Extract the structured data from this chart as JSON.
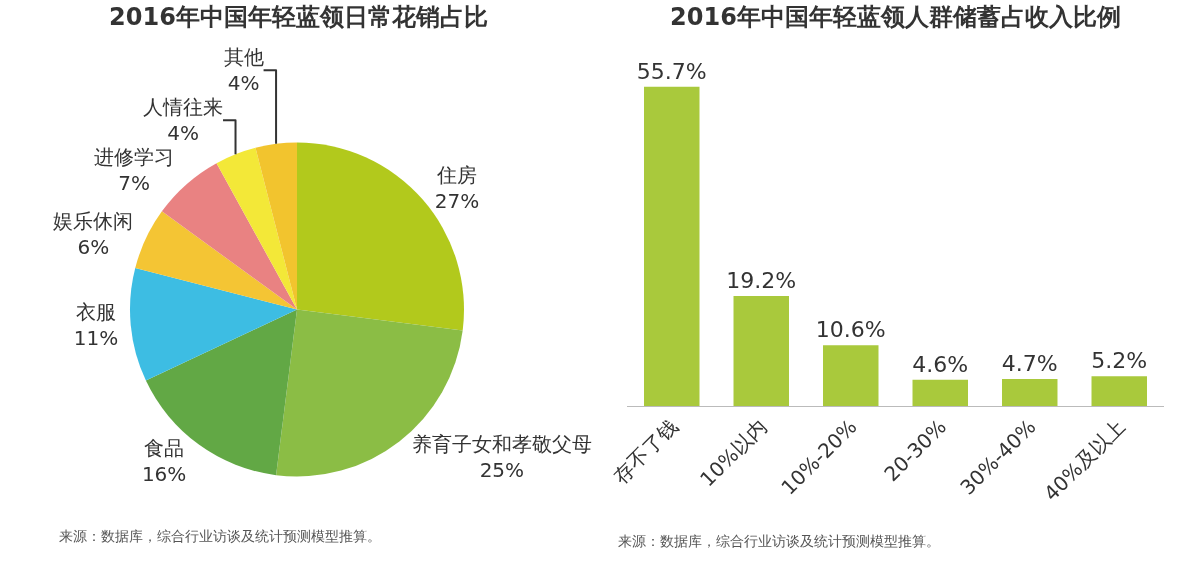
{
  "chart_data": [
    {
      "type": "pie",
      "title": "2016年中国年轻蓝领日常花销占比",
      "categories": [
        "住房",
        "养育子女和孝敬父母",
        "食品",
        "衣服",
        "娱乐休闲",
        "进修学习",
        "人情往来",
        "其他"
      ],
      "values": [
        27,
        25,
        16,
        11,
        6,
        7,
        4,
        4
      ],
      "value_labels": [
        "27%",
        "25%",
        "16%",
        "11%",
        "6%",
        "7%",
        "4%",
        "4%"
      ],
      "colors": [
        "#b2c91c",
        "#8bbd45",
        "#62a845",
        "#3dbde3",
        "#f4c534",
        "#e98282",
        "#f3e838",
        "#f2c42e"
      ],
      "legend": false,
      "annotations": [
        "来源：数据库，综合行业访谈及统计预测模型推算。"
      ]
    },
    {
      "type": "bar",
      "title": "2016年中国年轻蓝领人群储蓄占收入比例",
      "categories": [
        "存不了钱",
        "10%以内",
        "10%-20%",
        "20-30%",
        "30%-40%",
        "40%及以上"
      ],
      "values": [
        55.7,
        19.2,
        10.6,
        4.6,
        4.7,
        5.2
      ],
      "value_labels": [
        "55.7%",
        "19.2%",
        "10.6%",
        "4.6%",
        "4.7%",
        "5.2%"
      ],
      "color": "#a9c93c",
      "legend": false,
      "grid": false,
      "annotations": [
        "来源：数据库，综合行业访谈及统计预测模型推算。"
      ]
    }
  ]
}
